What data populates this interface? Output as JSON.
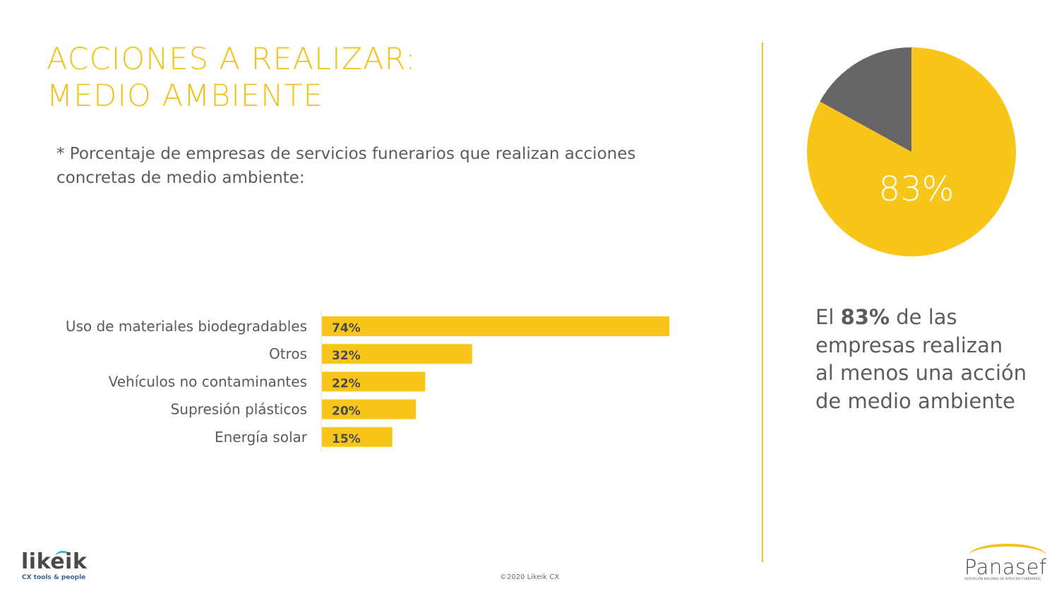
{
  "header": {
    "title_line1": "ACCIONES A REALIZAR:",
    "title_line2": "MEDIO AMBIENTE",
    "subtitle": "* Porcentaje de empresas de servicios funerarios que realizan acciones concretas de medio ambiente:"
  },
  "chart_data": [
    {
      "type": "bar",
      "orientation": "horizontal",
      "categories": [
        "Uso de materiales biodegradables",
        "Otros",
        "Vehículos no contaminantes",
        "Supresión plásticos",
        "Energía solar"
      ],
      "values": [
        74,
        32,
        22,
        20,
        15
      ],
      "value_labels": [
        "74%",
        "32%",
        "22%",
        "20%",
        "15%"
      ],
      "xlim": [
        0,
        100
      ],
      "grid": false,
      "bar_color": "#F8C61B",
      "label_color": "#5a5a5a"
    },
    {
      "type": "pie",
      "values": [
        83,
        17
      ],
      "colors": [
        "#F8C61B",
        "#676567"
      ],
      "data_label": "83%"
    }
  ],
  "statement": {
    "prefix": "El ",
    "highlight": "83%",
    "suffix": " de las empresas realizan al menos una acción de medio ambiente"
  },
  "footer": {
    "copyright": "©2020 Likeik CX",
    "logo_left_text": "likeik",
    "logo_left_tagline": "CX tools & people",
    "logo_right_text": "Panasef",
    "logo_right_tagline": "ASOCIACIÓN NACIONAL DE SERVICIOS FUNERARIOS"
  },
  "colors": {
    "accent": "#F2C21B",
    "text": "#5c5c5c",
    "teal": "#3BB8C4"
  }
}
